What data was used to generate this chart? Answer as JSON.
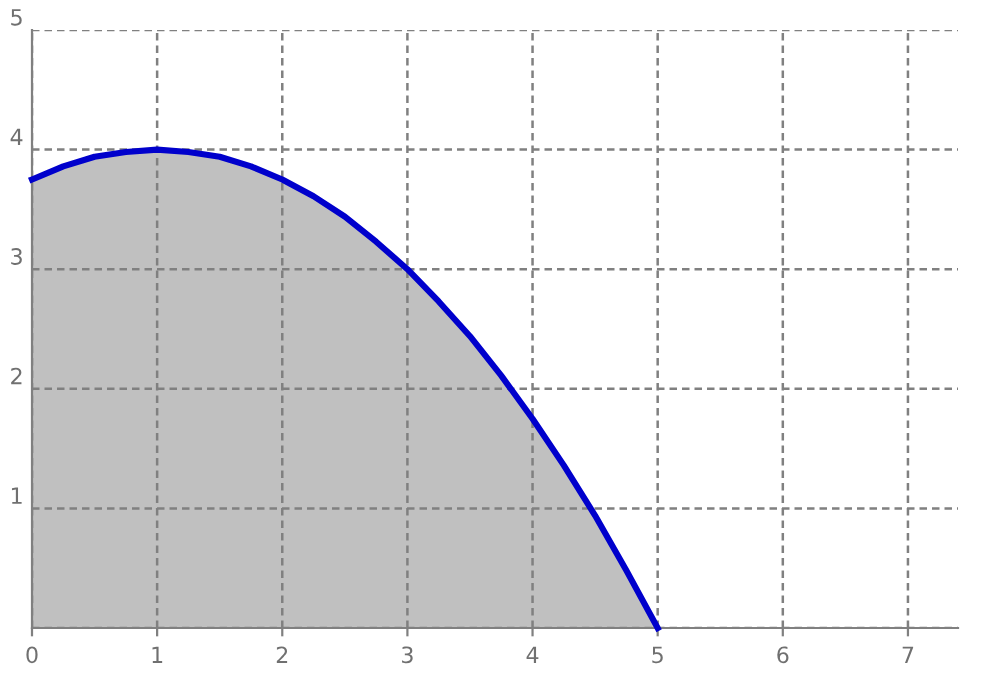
{
  "chart_data": {
    "type": "area",
    "xlim": [
      0,
      7.4
    ],
    "ylim": [
      0,
      5
    ],
    "xticks": [
      0,
      1,
      2,
      3,
      4,
      5,
      6,
      7
    ],
    "yticks": [
      {
        "value": 0,
        "label": null
      },
      1,
      2,
      3,
      4,
      5
    ],
    "grid": true,
    "line_style": "solid",
    "marker": "none",
    "series": [
      {
        "color": "#0000cc",
        "x": [
          0,
          0.25,
          0.5,
          0.75,
          1,
          1.25,
          1.5,
          1.75,
          2,
          2.25,
          2.5,
          2.75,
          3,
          3.25,
          3.5,
          3.75,
          4,
          4.25,
          4.5,
          4.75,
          5
        ],
        "values": [
          3.75,
          3.86,
          3.94,
          3.98,
          4.0,
          3.98,
          3.94,
          3.86,
          3.75,
          3.61,
          3.44,
          3.23,
          3.0,
          2.73,
          2.44,
          2.11,
          1.75,
          1.36,
          0.94,
          0.48,
          0.0
        ]
      }
    ]
  }
}
